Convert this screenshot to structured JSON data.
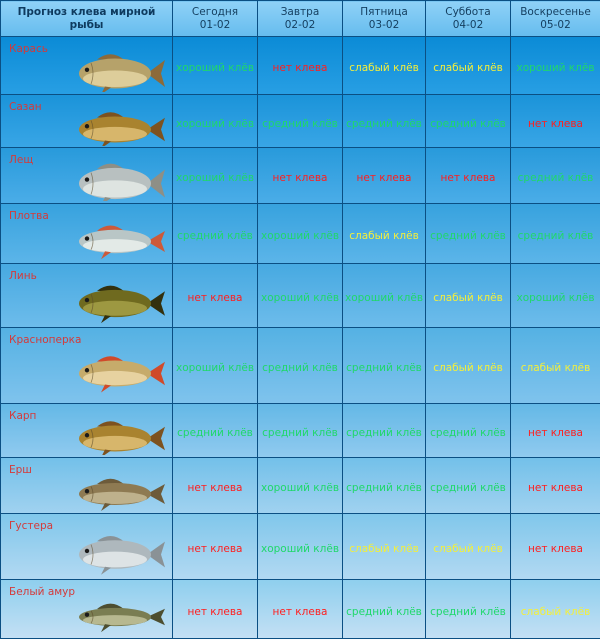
{
  "header": {
    "title": "Прогноз клева мирной рыбы",
    "days": [
      {
        "name": "Сегодня",
        "date": "01-02"
      },
      {
        "name": "Завтра",
        "date": "02-02"
      },
      {
        "name": "Пятница",
        "date": "03-02"
      },
      {
        "name": "Суббота",
        "date": "04-02"
      },
      {
        "name": "Воскресенье",
        "date": "05-02"
      }
    ]
  },
  "statuses": {
    "good": "хороший клёв",
    "none": "нет клева",
    "weak": "слабый клёв",
    "medium": "средний клёв"
  },
  "colors": {
    "good": "#1fd86a",
    "none": "#ff1e1e",
    "weak": "#f4ef3a",
    "fish_name": "#d43a3a",
    "grid": "#0b4f83"
  },
  "fish": [
    {
      "name": "Карась",
      "icon": "crucian-fish-icon",
      "forecast": [
        "хороший клёв",
        "нет клева",
        "слабый клёв",
        "слабый клёв",
        "хороший клёв"
      ]
    },
    {
      "name": "Сазан",
      "icon": "carp-fish-icon",
      "forecast": [
        "хороший клёв",
        "средний клёв",
        "средний клёв",
        "средний клёв",
        "нет клева"
      ]
    },
    {
      "name": "Лещ",
      "icon": "bream-fish-icon",
      "forecast": [
        "хороший клёв",
        "нет клева",
        "нет клева",
        "нет клева",
        "средний клёв"
      ]
    },
    {
      "name": "Плотва",
      "icon": "roach-fish-icon",
      "forecast": [
        "средний клёв",
        "хороший клёв",
        "слабый клёв",
        "средний клёв",
        "средний клёв"
      ]
    },
    {
      "name": "Линь",
      "icon": "tench-fish-icon",
      "forecast": [
        "нет клева",
        "хороший клёв",
        "хороший клёв",
        "слабый клёв",
        "хороший клёв"
      ]
    },
    {
      "name": "Красноперка",
      "icon": "rudd-fish-icon",
      "forecast": [
        "хороший клёв",
        "средний клёв",
        "средний клёв",
        "слабый клёв",
        "слабый клёв"
      ]
    },
    {
      "name": "Карп",
      "icon": "carp-fish-icon",
      "forecast": [
        "средний клёв",
        "средний клёв",
        "средний клёв",
        "средний клёв",
        "нет клева"
      ]
    },
    {
      "name": "Ерш",
      "icon": "ruffe-fish-icon",
      "forecast": [
        "нет клева",
        "хороший клёв",
        "средний клёв",
        "средний клёв",
        "нет клева"
      ]
    },
    {
      "name": "Густера",
      "icon": "silver-bream-fish-icon",
      "forecast": [
        "нет клева",
        "хороший клёв",
        "слабый клёв",
        "слабый клёв",
        "нет клева"
      ]
    },
    {
      "name": "Белый амур",
      "icon": "grass-carp-fish-icon",
      "forecast": [
        "нет клева",
        "нет клева",
        "средний клёв",
        "средний клёв",
        "слабый клёв"
      ]
    }
  ]
}
